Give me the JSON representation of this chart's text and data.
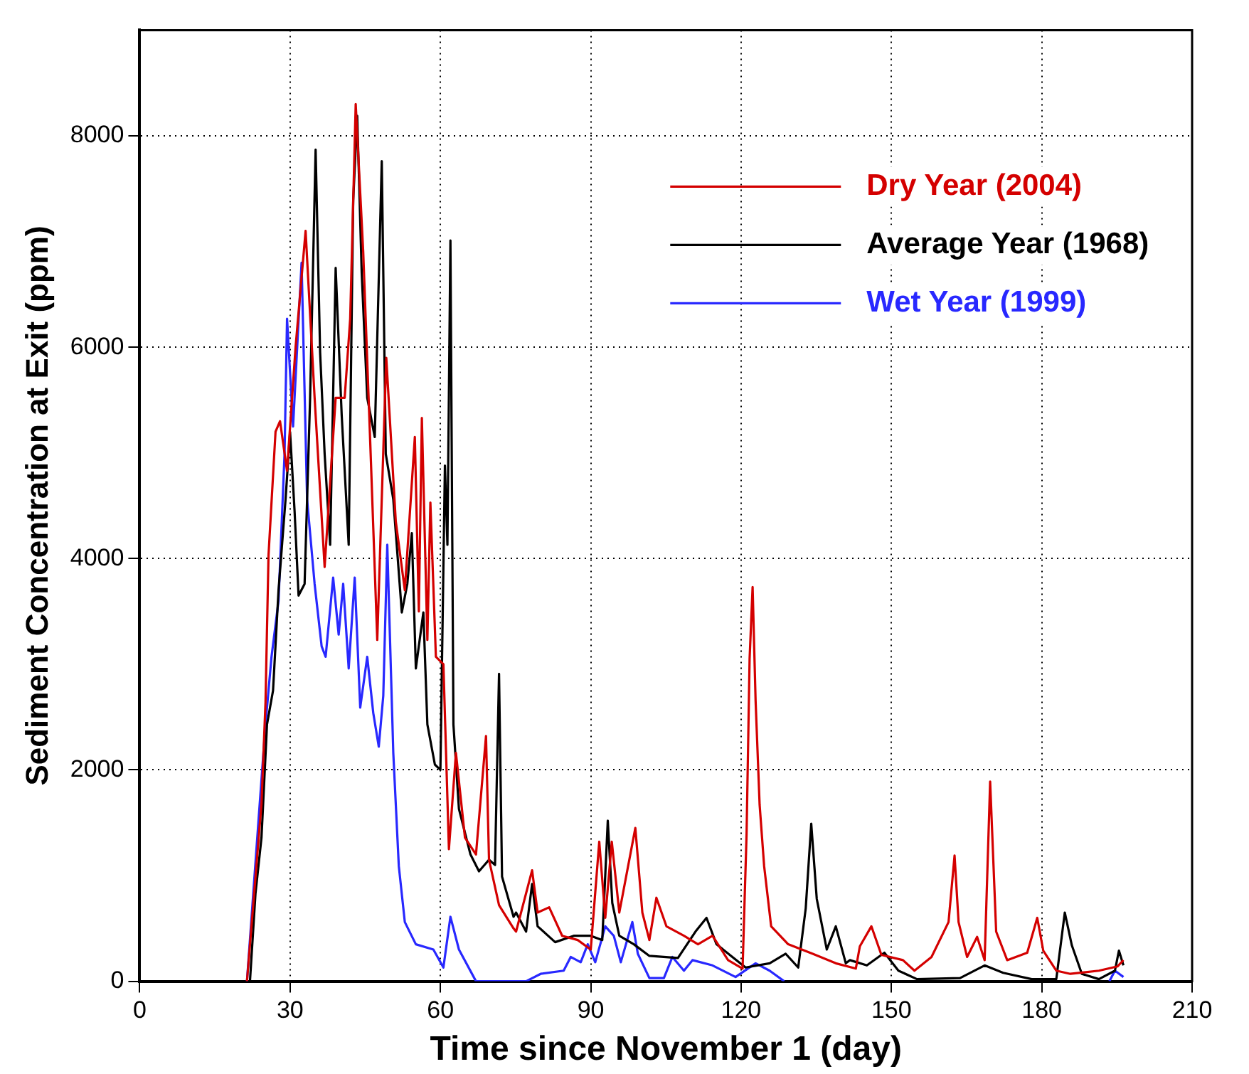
{
  "chart_data": {
    "type": "line",
    "xlabel": "Time since November 1 (day)",
    "ylabel": "Sediment Concentration at Exit (ppm)",
    "xlim": [
      0,
      210
    ],
    "xticks": [
      0,
      30,
      60,
      90,
      120,
      150,
      180,
      210
    ],
    "ylim": [
      0,
      9000
    ],
    "yticks": [
      0,
      2000,
      4000,
      6000,
      8000
    ],
    "grid": true,
    "legend": "top right",
    "marker": "none",
    "line_style": "solid",
    "series": [
      {
        "name": "Dry Year (2004)",
        "color": "#d40000",
        "x": [
          21.4,
          24.3,
          25.1,
          25.7,
          27.1,
          28,
          29.4,
          31.1,
          33.1,
          34.9,
          36.9,
          39.1,
          40.9,
          42,
          43.1,
          44.6,
          46,
          47.4,
          49.2,
          51.1,
          52.9,
          54.9,
          55.7,
          56.3,
          57.4,
          58,
          59.1,
          60.6,
          61.7,
          63.1,
          64.9,
          67.1,
          69.1,
          69.7,
          71.7,
          74.6,
          75.1,
          78.3,
          79.4,
          81.7,
          84.3,
          87.4,
          90,
          91.7,
          92.9,
          94.2,
          95.7,
          97.1,
          98.9,
          100.3,
          101.7,
          103.1,
          105.1,
          108.6,
          111.4,
          114.3,
          117.4,
          120.3,
          121.1,
          121.7,
          122.3,
          122.9,
          123.7,
          124.6,
          126,
          129.4,
          134.3,
          138.9,
          142.9,
          143.7,
          146,
          148,
          152.3,
          154.6,
          158,
          161.4,
          162.6,
          163.4,
          165.1,
          167.1,
          168.6,
          169.7,
          170.9,
          173.1,
          177.1,
          179.1,
          180.3,
          182.9,
          185.7,
          191.4,
          195.1,
          196.3
        ],
        "values": [
          0,
          1680,
          2640,
          4030,
          5200,
          5300,
          4830,
          6000,
          7100,
          5520,
          3920,
          5520,
          5520,
          6270,
          8300,
          6900,
          5100,
          3230,
          5900,
          4350,
          3700,
          5150,
          3500,
          5330,
          3230,
          4530,
          3070,
          3000,
          1250,
          2160,
          1360,
          1200,
          2320,
          1150,
          720,
          500,
          470,
          1050,
          650,
          700,
          430,
          390,
          300,
          1320,
          600,
          1320,
          650,
          1000,
          1450,
          650,
          390,
          790,
          520,
          430,
          350,
          430,
          200,
          120,
          1400,
          3050,
          3730,
          2650,
          1670,
          1090,
          520,
          350,
          260,
          170,
          120,
          330,
          520,
          250,
          200,
          100,
          230,
          560,
          1190,
          560,
          230,
          420,
          200,
          1890,
          470,
          200,
          270,
          600,
          290,
          100,
          70,
          100,
          140,
          200
        ]
      },
      {
        "name": "Average Year (1968)",
        "color": "#000000",
        "x": [
          22,
          23.1,
          24.3,
          25.4,
          26.6,
          27.7,
          29.1,
          30,
          30.9,
          31.7,
          32.9,
          34,
          35.1,
          36,
          36.9,
          38,
          39.1,
          40.3,
          41.7,
          42.6,
          43.4,
          44.3,
          45.4,
          46.9,
          48.3,
          49.1,
          50.6,
          52.3,
          53.4,
          54.3,
          55.1,
          56.6,
          57.4,
          58.9,
          60,
          60.9,
          61.4,
          62,
          62.6,
          63.7,
          66,
          67.7,
          69.7,
          70.9,
          71.7,
          72.3,
          74.6,
          75.1,
          77.1,
          78.3,
          79.4,
          82.9,
          86.6,
          90,
          92.3,
          93.4,
          94.3,
          95.7,
          98.6,
          101.7,
          107.4,
          110.9,
          113.1,
          115.1,
          118,
          120.9,
          125.7,
          128.9,
          131.4,
          132.9,
          134,
          135.1,
          137.1,
          138.9,
          140.9,
          141.7,
          145.1,
          148.6,
          151.4,
          155.1,
          163.7,
          168.6,
          172.3,
          178,
          182.9,
          184.6,
          186,
          188,
          191.4,
          194.6,
          195.4,
          196.3
        ],
        "values": [
          0,
          830,
          1360,
          2430,
          2750,
          3700,
          4560,
          5200,
          4450,
          3650,
          3760,
          5520,
          7870,
          5950,
          4990,
          4130,
          6750,
          5360,
          4130,
          7390,
          8190,
          6700,
          5520,
          5150,
          7760,
          4990,
          4560,
          3490,
          3760,
          4240,
          2960,
          3490,
          2430,
          2050,
          2000,
          4880,
          4130,
          7010,
          2430,
          1630,
          1200,
          1040,
          1150,
          1100,
          2910,
          990,
          610,
          650,
          470,
          920,
          520,
          370,
          430,
          430,
          390,
          1520,
          740,
          430,
          350,
          240,
          220,
          470,
          600,
          350,
          240,
          130,
          170,
          260,
          130,
          690,
          1490,
          780,
          300,
          520,
          170,
          200,
          150,
          270,
          100,
          20,
          30,
          150,
          80,
          20,
          20,
          650,
          340,
          70,
          20,
          100,
          290,
          150
        ]
      },
      {
        "name": "Wet Year (1999)",
        "color": "#2828ff",
        "x": [
          21.4,
          23.7,
          25.1,
          26.3,
          27.7,
          28.9,
          29.4,
          30.6,
          32.3,
          33.4,
          34.9,
          36.3,
          37.1,
          38.6,
          39.7,
          40.6,
          41.7,
          42.9,
          44,
          45.4,
          46.6,
          47.7,
          48.6,
          49.4,
          50.6,
          51.7,
          52.9,
          55.1,
          58.6,
          60.6,
          62,
          63.7,
          67.1,
          77.1,
          80,
          84.6,
          86,
          88,
          89.4,
          90.9,
          92.9,
          94.6,
          96,
          98.3,
          99.4,
          101.7,
          104.6,
          106.3,
          108.6,
          110.3,
          114.3,
          118.9,
          122.9,
          125.7,
          128.6,
          160,
          193.5,
          194.6,
          196.3
        ],
        "values": [
          0,
          1520,
          2430,
          3070,
          3600,
          4990,
          6270,
          5250,
          6800,
          4560,
          3760,
          3170,
          3070,
          3820,
          3280,
          3760,
          2960,
          3820,
          2590,
          3070,
          2540,
          2220,
          2700,
          4130,
          2160,
          1090,
          560,
          350,
          300,
          130,
          610,
          300,
          0,
          0,
          70,
          100,
          230,
          180,
          350,
          180,
          520,
          430,
          180,
          560,
          260,
          30,
          30,
          230,
          100,
          200,
          150,
          40,
          170,
          100,
          0,
          null,
          0,
          100,
          40
        ]
      }
    ]
  }
}
